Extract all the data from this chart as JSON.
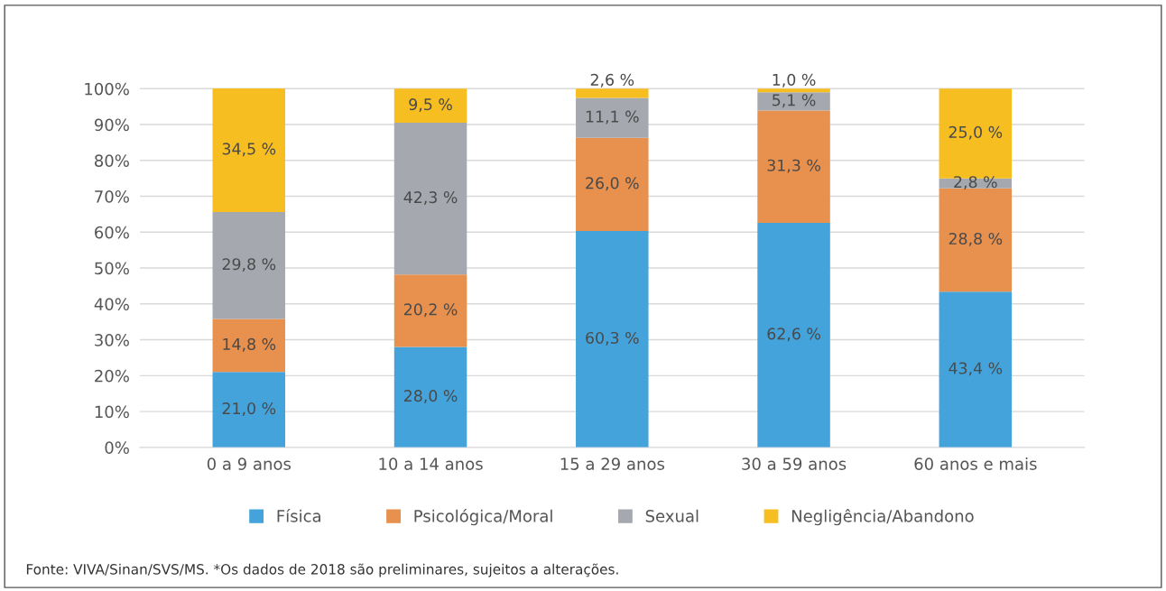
{
  "chart_data": {
    "type": "bar",
    "stacked": true,
    "categories": [
      "0 a 9 anos",
      "10 a 14 anos",
      "15 a 29 anos",
      "30 a 59 anos",
      "60 anos e mais"
    ],
    "series": [
      {
        "name": "Física",
        "color": "#44a3db",
        "values": [
          21.0,
          28.0,
          60.3,
          62.6,
          43.4
        ],
        "value_labels": [
          "21,0 %",
          "28,0 %",
          "60,3 %",
          "62,6 %",
          "43,4 %"
        ]
      },
      {
        "name": "Psicológica/Moral",
        "color": "#e8904d",
        "values": [
          14.8,
          20.2,
          26.0,
          31.3,
          28.8
        ],
        "value_labels": [
          "14,8 %",
          "20,2 %",
          "26,0 %",
          "31,3 %",
          "28,8 %"
        ]
      },
      {
        "name": "Sexual",
        "color": "#a5a9af",
        "values": [
          29.8,
          42.3,
          11.1,
          5.1,
          2.8
        ],
        "value_labels": [
          "29,8 %",
          "42,3 %",
          "11,1 %",
          "5,1 %",
          "2,8 %"
        ]
      },
      {
        "name": "Negligência/Abandono",
        "color": "#f6be21",
        "values": [
          34.5,
          9.5,
          2.6,
          1.0,
          25.0
        ],
        "value_labels": [
          "34,5 %",
          "9,5 %",
          "2,6 %",
          "1,0 %",
          "25,0 %"
        ]
      }
    ],
    "ylim": [
      0,
      100.5
    ],
    "yticks": [
      {
        "value": 0,
        "label": "0%"
      },
      {
        "value": 10,
        "label": "10%"
      },
      {
        "value": 20,
        "label": "20%"
      },
      {
        "value": 30,
        "label": "30%"
      },
      {
        "value": 40,
        "label": "40%"
      },
      {
        "value": 50,
        "label": "50%"
      },
      {
        "value": 60,
        "label": "60%"
      },
      {
        "value": 70,
        "label": "70%"
      },
      {
        "value": 80,
        "label": "80%"
      },
      {
        "value": 90,
        "label": "90%"
      },
      {
        "value": 100,
        "label": "100%"
      }
    ],
    "grid": "y",
    "legend": "bottom",
    "annotations": [
      "Fonte: VIVA/Sinan/SVS/MS. *Os dados de 2018 são preliminares, sujeitos a alterações."
    ]
  }
}
